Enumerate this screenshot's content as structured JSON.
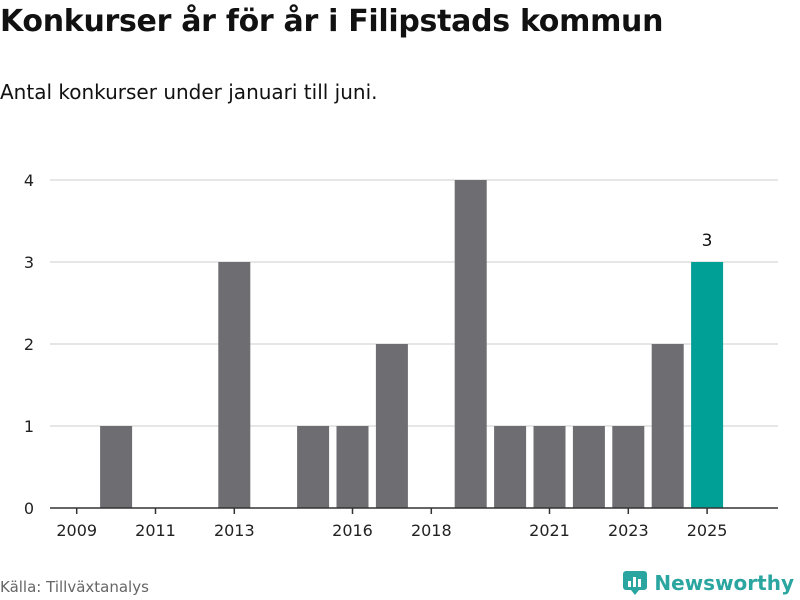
{
  "header": {
    "title": "Konkurser år för år i Filipstads kommun",
    "subtitle": "Antal konkurser under januari till juni."
  },
  "footer": {
    "source": "Källa: Tillväxtanalys",
    "brand": "Newsworthy"
  },
  "colors": {
    "bar": "#6d6d72",
    "highlight": "#00a096",
    "grid": "#dddddd",
    "axis": "#333333",
    "brand": "#2aa5a0"
  },
  "chart_data": {
    "type": "bar",
    "title": "Konkurser år för år i Filipstads kommun",
    "subtitle": "Antal konkurser under januari till juni.",
    "categories": [
      2009,
      2010,
      2011,
      2012,
      2013,
      2014,
      2015,
      2016,
      2017,
      2018,
      2019,
      2020,
      2021,
      2022,
      2023,
      2024,
      2025
    ],
    "values": [
      0,
      1,
      0,
      0,
      3,
      0,
      1,
      1,
      2,
      0,
      4,
      1,
      1,
      1,
      1,
      2,
      3
    ],
    "x_tick_labels": [
      "2009",
      "2011",
      "2013",
      "2016",
      "2018",
      "2021",
      "2023",
      "2025"
    ],
    "y_ticks": [
      0,
      1,
      2,
      3,
      4
    ],
    "ylim": [
      0,
      4
    ],
    "highlight_category": 2025,
    "annotations": [
      {
        "category": 2025,
        "text": "3"
      }
    ],
    "grid": true,
    "xlabel": "",
    "ylabel": ""
  }
}
